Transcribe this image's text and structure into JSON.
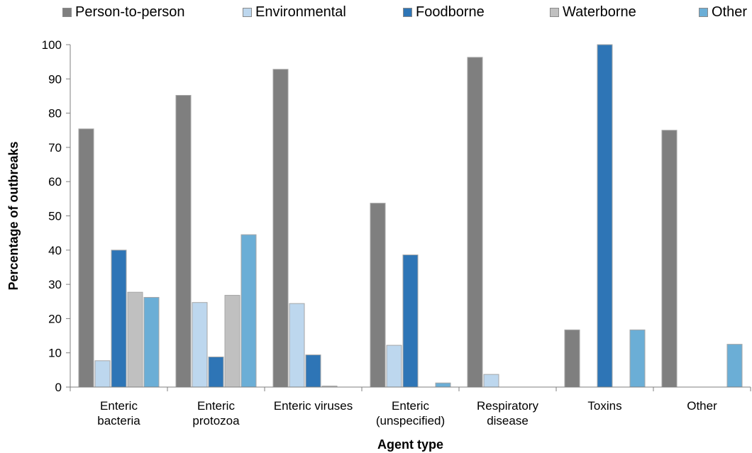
{
  "chart_data": {
    "type": "bar",
    "xlabel": "Agent type",
    "ylabel": "Percentage of outbreaks",
    "ylim": [
      0,
      100
    ],
    "yticks": [
      0,
      10,
      20,
      30,
      40,
      50,
      60,
      70,
      80,
      90,
      100
    ],
    "legend_position": "top",
    "grid": false,
    "categories": [
      [
        "Enteric",
        "bacteria"
      ],
      [
        "Enteric",
        "protozoa"
      ],
      [
        "Enteric viruses"
      ],
      [
        "Enteric",
        "(unspecified)"
      ],
      [
        "Respiratory",
        "disease"
      ],
      [
        "Toxins"
      ],
      [
        "Other"
      ]
    ],
    "series": [
      {
        "name": "Person-to-person",
        "color": "#7f7f7f",
        "values": [
          75.4,
          85.2,
          92.8,
          53.7,
          96.3,
          16.7,
          75.0
        ]
      },
      {
        "name": "Environmental",
        "color": "#bdd7ee",
        "values": [
          7.7,
          24.7,
          24.4,
          12.2,
          3.7,
          0,
          0
        ]
      },
      {
        "name": "Foodborne",
        "color": "#2e75b6",
        "values": [
          40.0,
          8.8,
          9.4,
          38.6,
          0,
          100,
          0
        ]
      },
      {
        "name": "Waterborne",
        "color": "#c0c0c0",
        "values": [
          27.7,
          26.8,
          0.3,
          0,
          0,
          0,
          0
        ]
      },
      {
        "name": "Other",
        "color": "#6baed6",
        "values": [
          26.2,
          44.5,
          0,
          1.2,
          0,
          16.7,
          12.5
        ]
      }
    ]
  }
}
